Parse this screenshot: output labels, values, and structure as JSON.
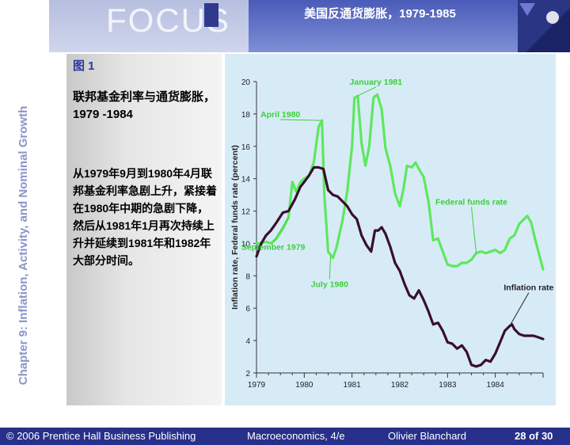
{
  "header": {
    "logo_text": "FOCUS",
    "title": "美国反通货膨胀，1979-1985"
  },
  "sidebar": {
    "chapter_title": "Chapter 9: Inflation, Activity, and Nominal Growth"
  },
  "figure": {
    "label": "图 1",
    "caption": "联邦基金利率与通货膨胀，1979 -1984",
    "description": "从1979年9月到1980年4月联邦基金利率急剧上升，紧接着在1980年中期的急剧下降，然后从1981年1月再次持续上升并延续到1981年和1982年大部分时间。"
  },
  "chart_data": {
    "type": "line",
    "ylabel": "Inflation rate, Federal funds rate (percent)",
    "xlim": [
      1979,
      1985
    ],
    "ylim": [
      2,
      20
    ],
    "x_ticks": [
      "1979",
      "1980",
      "1981",
      "1982",
      "1983",
      "1984"
    ],
    "y_ticks": [
      "2",
      "4",
      "6",
      "8",
      "10",
      "12",
      "14",
      "16",
      "18",
      "20"
    ],
    "series": [
      {
        "name": "Federal funds rate",
        "color": "#5ee85e",
        "points": [
          [
            1979.0,
            10.0
          ],
          [
            1979.1,
            10.0
          ],
          [
            1979.2,
            10.1
          ],
          [
            1979.3,
            10.0
          ],
          [
            1979.42,
            10.3
          ],
          [
            1979.55,
            10.9
          ],
          [
            1979.67,
            11.6
          ],
          [
            1979.75,
            13.8
          ],
          [
            1979.83,
            13.2
          ],
          [
            1979.92,
            13.8
          ],
          [
            1980.0,
            14.0
          ],
          [
            1980.1,
            14.2
          ],
          [
            1980.2,
            15.0
          ],
          [
            1980.3,
            17.2
          ],
          [
            1980.37,
            17.6
          ],
          [
            1980.42,
            13.0
          ],
          [
            1980.5,
            9.5
          ],
          [
            1980.6,
            9.1
          ],
          [
            1980.67,
            9.7
          ],
          [
            1980.8,
            11.4
          ],
          [
            1980.9,
            13.2
          ],
          [
            1981.0,
            16.0
          ],
          [
            1981.05,
            19.0
          ],
          [
            1981.12,
            19.1
          ],
          [
            1981.2,
            16.2
          ],
          [
            1981.28,
            14.8
          ],
          [
            1981.36,
            16.0
          ],
          [
            1981.45,
            19.0
          ],
          [
            1981.53,
            19.2
          ],
          [
            1981.62,
            18.3
          ],
          [
            1981.7,
            15.9
          ],
          [
            1981.8,
            14.8
          ],
          [
            1981.9,
            13.1
          ],
          [
            1982.0,
            12.3
          ],
          [
            1982.08,
            13.4
          ],
          [
            1982.15,
            14.8
          ],
          [
            1982.25,
            14.7
          ],
          [
            1982.33,
            15.0
          ],
          [
            1982.42,
            14.5
          ],
          [
            1982.5,
            14.1
          ],
          [
            1982.6,
            12.6
          ],
          [
            1982.7,
            10.2
          ],
          [
            1982.8,
            10.3
          ],
          [
            1982.9,
            9.5
          ],
          [
            1983.0,
            8.7
          ],
          [
            1983.1,
            8.6
          ],
          [
            1983.2,
            8.6
          ],
          [
            1983.3,
            8.8
          ],
          [
            1983.4,
            8.8
          ],
          [
            1983.5,
            9.0
          ],
          [
            1983.6,
            9.4
          ],
          [
            1983.7,
            9.5
          ],
          [
            1983.8,
            9.4
          ],
          [
            1983.9,
            9.5
          ],
          [
            1984.0,
            9.6
          ],
          [
            1984.1,
            9.4
          ],
          [
            1984.2,
            9.6
          ],
          [
            1984.3,
            10.3
          ],
          [
            1984.4,
            10.5
          ],
          [
            1984.5,
            11.2
          ],
          [
            1984.6,
            11.5
          ],
          [
            1984.67,
            11.7
          ],
          [
            1984.75,
            11.3
          ],
          [
            1984.83,
            10.3
          ],
          [
            1984.92,
            9.3
          ],
          [
            1985.0,
            8.4
          ]
        ]
      },
      {
        "name": "Inflation rate",
        "color": "#3a0f2e",
        "points": [
          [
            1979.0,
            9.2
          ],
          [
            1979.1,
            10.0
          ],
          [
            1979.2,
            10.5
          ],
          [
            1979.3,
            10.8
          ],
          [
            1979.42,
            11.3
          ],
          [
            1979.55,
            11.9
          ],
          [
            1979.67,
            12.0
          ],
          [
            1979.8,
            12.7
          ],
          [
            1979.92,
            13.5
          ],
          [
            1980.0,
            13.8
          ],
          [
            1980.1,
            14.2
          ],
          [
            1980.2,
            14.7
          ],
          [
            1980.3,
            14.7
          ],
          [
            1980.4,
            14.6
          ],
          [
            1980.5,
            13.3
          ],
          [
            1980.6,
            13.0
          ],
          [
            1980.7,
            12.9
          ],
          [
            1980.8,
            12.6
          ],
          [
            1980.9,
            12.3
          ],
          [
            1981.0,
            11.8
          ],
          [
            1981.1,
            11.5
          ],
          [
            1981.2,
            10.5
          ],
          [
            1981.3,
            9.9
          ],
          [
            1981.4,
            9.5
          ],
          [
            1981.48,
            10.8
          ],
          [
            1981.55,
            10.8
          ],
          [
            1981.62,
            11.0
          ],
          [
            1981.7,
            10.6
          ],
          [
            1981.8,
            9.8
          ],
          [
            1981.9,
            8.8
          ],
          [
            1982.0,
            8.3
          ],
          [
            1982.1,
            7.5
          ],
          [
            1982.2,
            6.8
          ],
          [
            1982.3,
            6.6
          ],
          [
            1982.4,
            7.1
          ],
          [
            1982.5,
            6.5
          ],
          [
            1982.6,
            5.8
          ],
          [
            1982.7,
            5.0
          ],
          [
            1982.8,
            5.1
          ],
          [
            1982.9,
            4.6
          ],
          [
            1983.0,
            3.9
          ],
          [
            1983.1,
            3.8
          ],
          [
            1983.2,
            3.5
          ],
          [
            1983.3,
            3.7
          ],
          [
            1983.4,
            3.3
          ],
          [
            1983.5,
            2.5
          ],
          [
            1983.6,
            2.4
          ],
          [
            1983.7,
            2.5
          ],
          [
            1983.8,
            2.8
          ],
          [
            1983.9,
            2.7
          ],
          [
            1984.0,
            3.2
          ],
          [
            1984.1,
            3.9
          ],
          [
            1984.2,
            4.6
          ],
          [
            1984.3,
            4.9
          ],
          [
            1984.35,
            5.0
          ],
          [
            1984.4,
            4.7
          ],
          [
            1984.5,
            4.4
          ],
          [
            1984.6,
            4.3
          ],
          [
            1984.7,
            4.3
          ],
          [
            1984.8,
            4.3
          ],
          [
            1984.9,
            4.2
          ],
          [
            1985.0,
            4.1
          ]
        ]
      }
    ],
    "annotations": [
      {
        "text": "January 1981",
        "x": 1981.5,
        "y": 19.8,
        "target": [
          1981.1,
          19.1
        ]
      },
      {
        "text": "April 1980",
        "x": 1979.5,
        "y": 17.8,
        "target": [
          1980.35,
          17.6
        ]
      },
      {
        "text": "September 1979",
        "x": 1979.35,
        "y": 9.6,
        "target": [
          1979.67,
          11.6
        ]
      },
      {
        "text": "July 1980",
        "x": 1980.53,
        "y": 7.3,
        "target": [
          1980.55,
          9.2
        ]
      },
      {
        "text": "Federal funds rate",
        "x": 1983.5,
        "y": 12.4,
        "target": [
          1983.6,
          9.4
        ]
      },
      {
        "text": "Inflation rate",
        "x": 1984.7,
        "y": 7.1,
        "target": [
          1984.3,
          4.9
        ]
      }
    ]
  },
  "footer": {
    "copyright": "© 2006 Prentice Hall Business Publishing",
    "book": "Macroeconomics, 4/e",
    "author": "Olivier Blanchard",
    "page": "28 of 30"
  }
}
